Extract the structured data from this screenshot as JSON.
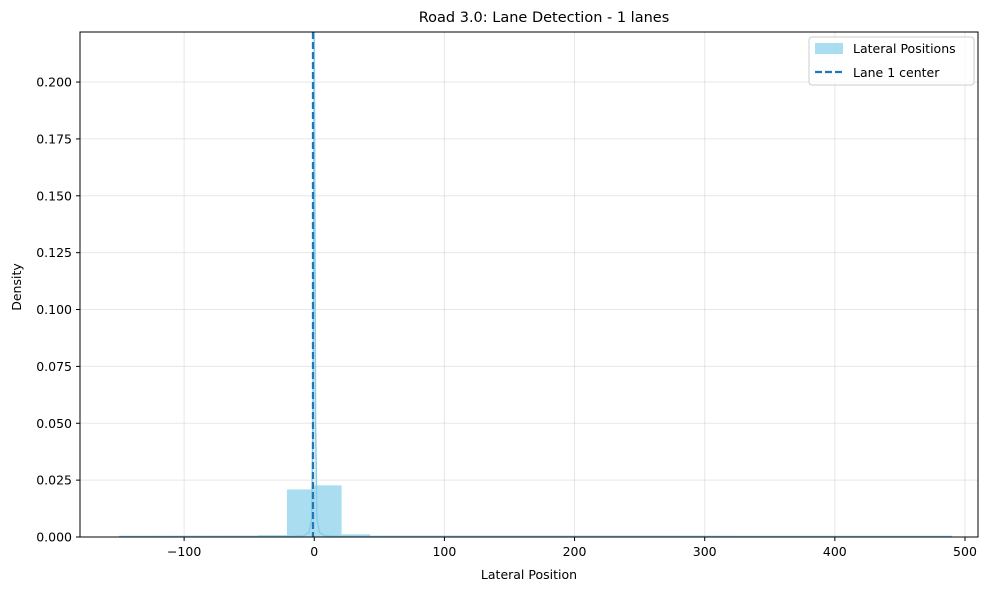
{
  "chart_data": {
    "type": "histogram",
    "title": "Road 3.0: Lane Detection - 1 lanes",
    "xlabel": "Lateral Position",
    "ylabel": "Density",
    "xlim": [
      -180,
      510
    ],
    "ylim": [
      0,
      0.222
    ],
    "x_ticks": [
      -100,
      0,
      100,
      200,
      300,
      400,
      500
    ],
    "x_tick_labels": [
      "−100",
      "0",
      "100",
      "200",
      "300",
      "400",
      "500"
    ],
    "y_ticks": [
      0,
      0.025,
      0.05,
      0.075,
      0.1,
      0.125,
      0.15,
      0.175,
      0.2
    ],
    "y_tick_labels": [
      "0.000",
      "0.025",
      "0.050",
      "0.075",
      "0.100",
      "0.125",
      "0.150",
      "0.175",
      "0.200"
    ],
    "grid": true,
    "legend_position": "top-right",
    "series": [
      {
        "name": "Lateral Positions",
        "kind": "histogram",
        "color": "#87ceeb",
        "bins": [
          {
            "x0": -150,
            "x1": -128,
            "value": 0.0002
          },
          {
            "x0": -128,
            "x1": -107,
            "value": 0.0002
          },
          {
            "x0": -107,
            "x1": -86,
            "value": 0.0002
          },
          {
            "x0": -86,
            "x1": -64,
            "value": 0.0002
          },
          {
            "x0": -64,
            "x1": -43,
            "value": 0.0003
          },
          {
            "x0": -43,
            "x1": -21,
            "value": 0.0008
          },
          {
            "x0": -21,
            "x1": 0,
            "value": 0.0209
          },
          {
            "x0": 0,
            "x1": 21,
            "value": 0.0227
          },
          {
            "x0": 21,
            "x1": 43,
            "value": 0.0012
          },
          {
            "x0": 43,
            "x1": 64,
            "value": 0.0004
          },
          {
            "x0": 64,
            "x1": 86,
            "value": 0.0002
          },
          {
            "x0": 86,
            "x1": 107,
            "value": 0.0002
          },
          {
            "x0": 107,
            "x1": 128,
            "value": 0.0002
          },
          {
            "x0": 128,
            "x1": 150,
            "value": 0.0002
          },
          {
            "x0": 150,
            "x1": 171,
            "value": 0.0002
          },
          {
            "x0": 171,
            "x1": 192,
            "value": 0.0002
          },
          {
            "x0": 192,
            "x1": 214,
            "value": 0.0002
          },
          {
            "x0": 214,
            "x1": 235,
            "value": 0.0002
          },
          {
            "x0": 235,
            "x1": 256,
            "value": 0.0002
          },
          {
            "x0": 256,
            "x1": 278,
            "value": 0.0002
          },
          {
            "x0": 278,
            "x1": 299,
            "value": 0.0002
          },
          {
            "x0": 299,
            "x1": 320,
            "value": 0.0002
          },
          {
            "x0": 320,
            "x1": 342,
            "value": 0.0002
          },
          {
            "x0": 342,
            "x1": 363,
            "value": 0.0002
          },
          {
            "x0": 363,
            "x1": 384,
            "value": 0.0002
          },
          {
            "x0": 384,
            "x1": 406,
            "value": 0.0002
          },
          {
            "x0": 406,
            "x1": 427,
            "value": 0.0002
          },
          {
            "x0": 427,
            "x1": 448,
            "value": 0.0002
          },
          {
            "x0": 448,
            "x1": 470,
            "value": 0.0002
          },
          {
            "x0": 470,
            "x1": 490,
            "value": 0.0002
          }
        ]
      },
      {
        "name": "",
        "kind": "kde",
        "color": "#87ceeb",
        "points": [
          {
            "x": -150,
            "y": 0.0002
          },
          {
            "x": -20,
            "y": 0.0003
          },
          {
            "x": -8,
            "y": 0.0006
          },
          {
            "x": -4,
            "y": 0.002
          },
          {
            "x": -2,
            "y": 0.008
          },
          {
            "x": -1,
            "y": 0.05
          },
          {
            "x": -0.5,
            "y": 0.14
          },
          {
            "x": 0,
            "y": 0.222
          },
          {
            "x": 0.5,
            "y": 0.14
          },
          {
            "x": 1,
            "y": 0.05
          },
          {
            "x": 2,
            "y": 0.008
          },
          {
            "x": 4,
            "y": 0.002
          },
          {
            "x": 8,
            "y": 0.0006
          },
          {
            "x": 20,
            "y": 0.0003
          },
          {
            "x": 490,
            "y": 0.0002
          }
        ]
      },
      {
        "name": "Lane 1 center",
        "kind": "vline",
        "color": "#1f77b4",
        "x": -1
      }
    ]
  }
}
